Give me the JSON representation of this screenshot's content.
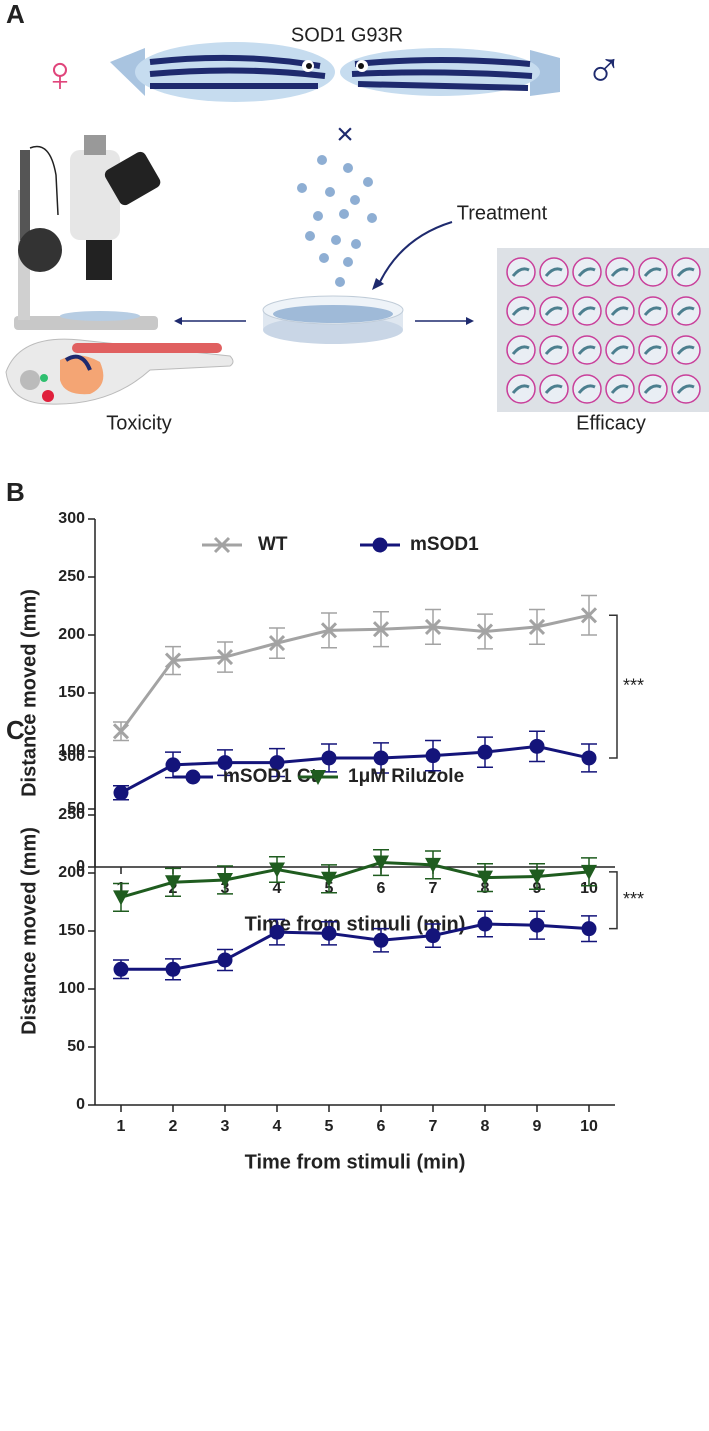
{
  "panel_a": {
    "label": "A",
    "title": "SOD1 G93R",
    "female": "♀",
    "male": "♂",
    "cross": "×",
    "treatment": "Treatment",
    "toxicity": "Toxicity",
    "efficacy": "Efficacy"
  },
  "chart_data": [
    {
      "type": "line",
      "panel": "B",
      "ylabel": "Distance moved (mm)",
      "xlabel": "Time from stimuli (min)",
      "x": [
        1,
        2,
        3,
        4,
        5,
        6,
        7,
        8,
        9,
        10
      ],
      "xlim": [
        0.5,
        10.5
      ],
      "xticks": [
        1,
        2,
        3,
        4,
        5,
        6,
        7,
        8,
        9,
        10
      ],
      "ylim": [
        0,
        300
      ],
      "yticks": [
        0,
        50,
        100,
        150,
        200,
        250,
        300
      ],
      "annotation": "***",
      "series": [
        {
          "name": "WT",
          "color": "#a3a3a3",
          "marker": "x",
          "values": [
            117,
            178,
            181,
            193,
            204,
            205,
            207,
            203,
            207,
            217
          ],
          "errors": [
            8,
            12,
            13,
            13,
            15,
            15,
            15,
            15,
            15,
            17
          ]
        },
        {
          "name": "mSOD1",
          "color": "#14147a",
          "marker": "circle",
          "values": [
            64,
            88,
            90,
            90,
            94,
            94,
            96,
            99,
            104,
            94
          ],
          "errors": [
            6,
            11,
            11,
            12,
            12,
            13,
            13,
            13,
            13,
            12
          ]
        }
      ]
    },
    {
      "type": "line",
      "panel": "C",
      "ylabel": "Distance moved (mm)",
      "xlabel": "Time from stimuli (min)",
      "x": [
        1,
        2,
        3,
        4,
        5,
        6,
        7,
        8,
        9,
        10
      ],
      "xlim": [
        0.5,
        10.5
      ],
      "xticks": [
        1,
        2,
        3,
        4,
        5,
        6,
        7,
        8,
        9,
        10
      ],
      "ylim": [
        0,
        300
      ],
      "yticks": [
        0,
        50,
        100,
        150,
        200,
        250,
        300
      ],
      "annotation": "***",
      "series": [
        {
          "name": "mSOD1 Ct",
          "color": "#14147a",
          "marker": "circle",
          "values": [
            117,
            117,
            125,
            149,
            148,
            142,
            146,
            156,
            155,
            152
          ],
          "errors": [
            8,
            9,
            9,
            11,
            10,
            10,
            10,
            11,
            12,
            11
          ]
        },
        {
          "name": "1μM Riluzole",
          "color": "#1f5c1f",
          "marker": "triangle-down",
          "values": [
            179,
            192,
            194,
            203,
            195,
            209,
            207,
            196,
            197,
            201
          ],
          "errors": [
            12,
            12,
            12,
            11,
            12,
            11,
            12,
            12,
            11,
            12
          ]
        }
      ]
    }
  ]
}
